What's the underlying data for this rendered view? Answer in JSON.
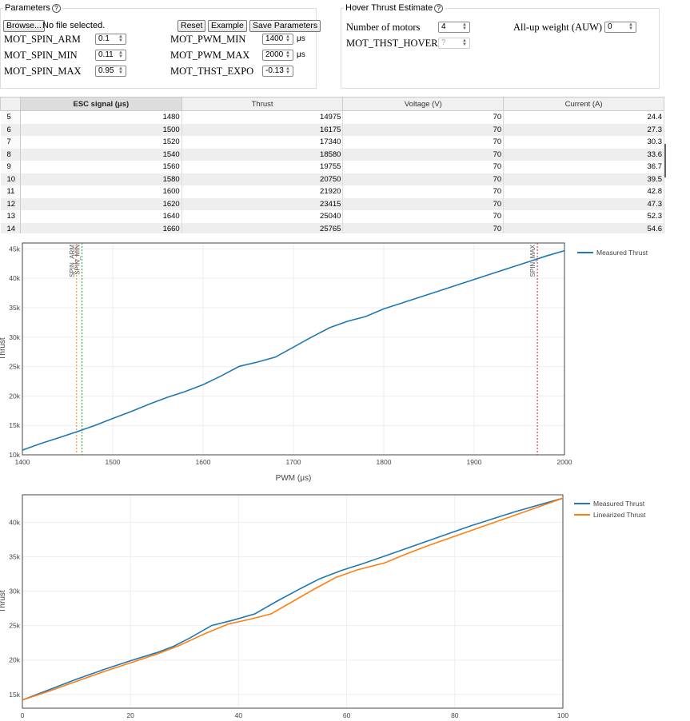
{
  "parameters": {
    "legend": "Parameters",
    "browse_label": "Browse...",
    "file_status": "No file selected.",
    "reset_label": "Reset",
    "example_label": "Example",
    "save_label": "Save Parameters",
    "spin_arm": {
      "label": "MOT_SPIN_ARM",
      "value": "0.1"
    },
    "spin_min": {
      "label": "MOT_SPIN_MIN",
      "value": "0.11"
    },
    "spin_max": {
      "label": "MOT_SPIN_MAX",
      "value": "0.95"
    },
    "pwm_min": {
      "label": "MOT_PWM_MIN",
      "value": "1400",
      "unit": "μs"
    },
    "pwm_max": {
      "label": "MOT_PWM_MAX",
      "value": "2000",
      "unit": "μs"
    },
    "thst_expo": {
      "label": "MOT_THST_EXPO",
      "value": "-0.13"
    }
  },
  "hover": {
    "legend": "Hover Thrust Estimate",
    "num_motors": {
      "label": "Number of motors",
      "value": "4"
    },
    "auw": {
      "label": "All-up weight (AUW)",
      "value": "0"
    },
    "thst_hover": {
      "label": "MOT_THST_HOVER",
      "value": "?"
    }
  },
  "table": {
    "headers": [
      "ESC signal (μs)",
      "Thrust",
      "Voltage (V)",
      "Current (A)"
    ],
    "rows": [
      {
        "n": "5",
        "esc": "1480",
        "thrust": "14975",
        "voltage": "70",
        "current": "24.4"
      },
      {
        "n": "6",
        "esc": "1500",
        "thrust": "16175",
        "voltage": "70",
        "current": "27.3"
      },
      {
        "n": "7",
        "esc": "1520",
        "thrust": "17340",
        "voltage": "70",
        "current": "30.3"
      },
      {
        "n": "8",
        "esc": "1540",
        "thrust": "18580",
        "voltage": "70",
        "current": "33.6"
      },
      {
        "n": "9",
        "esc": "1560",
        "thrust": "19755",
        "voltage": "70",
        "current": "36.7"
      },
      {
        "n": "10",
        "esc": "1580",
        "thrust": "20750",
        "voltage": "70",
        "current": "39.5"
      },
      {
        "n": "11",
        "esc": "1600",
        "thrust": "21920",
        "voltage": "70",
        "current": "42.8"
      },
      {
        "n": "12",
        "esc": "1620",
        "thrust": "23415",
        "voltage": "70",
        "current": "47.3"
      },
      {
        "n": "13",
        "esc": "1640",
        "thrust": "25040",
        "voltage": "70",
        "current": "52.3"
      },
      {
        "n": "14",
        "esc": "1660",
        "thrust": "25765",
        "voltage": "70",
        "current": "54.6"
      }
    ]
  },
  "chart_data": [
    {
      "type": "line",
      "xlabel": "PWM (μs)",
      "ylabel": "Thrust",
      "xlim": [
        1400,
        2000
      ],
      "ylim": [
        10000,
        46000
      ],
      "xticks": [
        1400,
        1500,
        1600,
        1700,
        1800,
        1900,
        2000
      ],
      "xtick_labels": [
        "1400",
        "1500",
        "1600",
        "1700",
        "1800",
        "1900",
        "2000"
      ],
      "yticks": [
        10000,
        15000,
        20000,
        25000,
        30000,
        35000,
        40000,
        45000
      ],
      "ytick_labels": [
        "10k",
        "15k",
        "20k",
        "25k",
        "30k",
        "35k",
        "40k",
        "45k"
      ],
      "grid": true,
      "legend": "top-right",
      "series": [
        {
          "name": "Measured Thrust",
          "color": "#1f77b4",
          "x": [
            1400,
            1420,
            1440,
            1460,
            1480,
            1500,
            1520,
            1540,
            1560,
            1580,
            1600,
            1620,
            1640,
            1660,
            1680,
            1700,
            1720,
            1740,
            1760,
            1780,
            1800,
            1820,
            1840,
            1860,
            1880,
            1900,
            1920,
            1940,
            1960,
            1980,
            2000
          ],
          "y": [
            10800,
            11900,
            12900,
            13900,
            14975,
            16175,
            17340,
            18580,
            19755,
            20750,
            21920,
            23415,
            25040,
            25765,
            26600,
            28300,
            30000,
            31600,
            32700,
            33500,
            34800,
            35800,
            36800,
            37800,
            38800,
            39800,
            40800,
            41800,
            42800,
            43800,
            44700
          ]
        }
      ],
      "annotations": [
        {
          "label": "SPIN_ARM",
          "x": 1460,
          "color": "#ff7f0e"
        },
        {
          "label": "SPIN_MIN",
          "x": 1466,
          "color": "#2ca02c"
        },
        {
          "label": "SPIN_MAX",
          "x": 1970,
          "color": "#d62728"
        }
      ]
    },
    {
      "type": "line",
      "ylabel": "Thrust",
      "xlim": [
        0,
        100
      ],
      "ylim": [
        13000,
        44000
      ],
      "xticks": [
        0,
        20,
        40,
        60,
        80,
        100
      ],
      "xtick_labels": [
        "0",
        "20",
        "40",
        "60",
        "80",
        "100"
      ],
      "yticks": [
        15000,
        20000,
        25000,
        30000,
        35000,
        40000
      ],
      "ytick_labels": [
        "15k",
        "20k",
        "25k",
        "30k",
        "35k",
        "40k"
      ],
      "grid": true,
      "legend": "top-right",
      "series": [
        {
          "name": "Measured Thrust",
          "color": "#1f77b4",
          "x": [
            0,
            5,
            10,
            15,
            20,
            25,
            28,
            31,
            35,
            39,
            43,
            47,
            51,
            55,
            59,
            63,
            67,
            71,
            75,
            79,
            83,
            87,
            91,
            95,
            100
          ],
          "y": [
            14200,
            15700,
            17200,
            18600,
            19900,
            21100,
            22000,
            23200,
            25000,
            25800,
            26700,
            28500,
            30200,
            31800,
            33000,
            34000,
            35100,
            36200,
            37300,
            38400,
            39500,
            40500,
            41500,
            42400,
            43500
          ]
        },
        {
          "name": "Linearized Thrust",
          "color": "#ff7f0e",
          "x": [
            0,
            5,
            10,
            15,
            20,
            25,
            29,
            34,
            38,
            42,
            46,
            50,
            54,
            58,
            62,
            67,
            71,
            75,
            79,
            83,
            87,
            91,
            95,
            100
          ],
          "y": [
            14200,
            15500,
            16900,
            18300,
            19600,
            20900,
            22100,
            23900,
            25200,
            25900,
            26700,
            28500,
            30300,
            32000,
            33100,
            34100,
            35400,
            36600,
            37700,
            38800,
            39900,
            41000,
            42100,
            43500
          ]
        }
      ]
    }
  ]
}
